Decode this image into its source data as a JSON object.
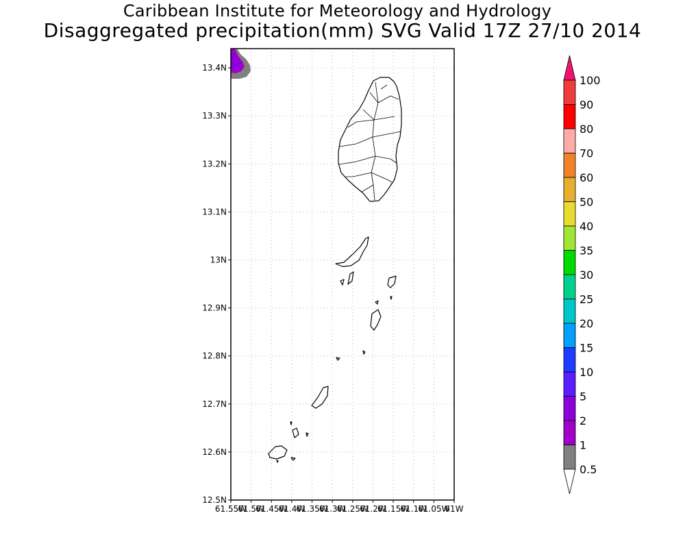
{
  "header": {
    "title": "Caribbean Institute for Meteorology and Hydrology",
    "subtitle": "Disaggregated precipitation(mm) SVG Valid 17Z 27/10 2014"
  },
  "map": {
    "lat_range": [
      12.5,
      13.44
    ],
    "lon_range": [
      -61.55,
      -61.0
    ],
    "lat_ticks": [
      {
        "value": 13.4,
        "label": "13.4N"
      },
      {
        "value": 13.3,
        "label": "13.3N"
      },
      {
        "value": 13.2,
        "label": "13.2N"
      },
      {
        "value": 13.1,
        "label": "13.1N"
      },
      {
        "value": 13.0,
        "label": "13N"
      },
      {
        "value": 12.9,
        "label": "12.9N"
      },
      {
        "value": 12.8,
        "label": "12.8N"
      },
      {
        "value": 12.7,
        "label": "12.7N"
      },
      {
        "value": 12.6,
        "label": "12.6N"
      },
      {
        "value": 12.5,
        "label": "12.5N"
      }
    ],
    "lon_ticks": [
      {
        "value": -61.55,
        "label": "61.55W"
      },
      {
        "value": -61.5,
        "label": "61.5W"
      },
      {
        "value": -61.45,
        "label": "61.45W"
      },
      {
        "value": -61.4,
        "label": "61.4W"
      },
      {
        "value": -61.35,
        "label": "61.35W"
      },
      {
        "value": -61.3,
        "label": "61.3W"
      },
      {
        "value": -61.25,
        "label": "61.25W"
      },
      {
        "value": -61.2,
        "label": "61.2W"
      },
      {
        "value": -61.15,
        "label": "61.15W"
      },
      {
        "value": -61.1,
        "label": "61.1W"
      },
      {
        "value": -61.05,
        "label": "61.05W"
      },
      {
        "value": -61.0,
        "label": "61W"
      }
    ],
    "grid": true
  },
  "colorbar": {
    "levels": [
      "100",
      "90",
      "80",
      "70",
      "60",
      "50",
      "40",
      "35",
      "30",
      "25",
      "20",
      "15",
      "10",
      "5",
      "2",
      "1",
      "0.5"
    ],
    "colors": [
      "#f0146e",
      "#f03c3c",
      "#ff0000",
      "#ffaaaa",
      "#f08228",
      "#e6af2d",
      "#e6dc32",
      "#a0e632",
      "#00dc00",
      "#00d28c",
      "#00c8c8",
      "#00a0ff",
      "#1e3cff",
      "#5a1eff",
      "#8c00dc",
      "#a000c8",
      "#808080",
      "#ffffff"
    ]
  }
}
